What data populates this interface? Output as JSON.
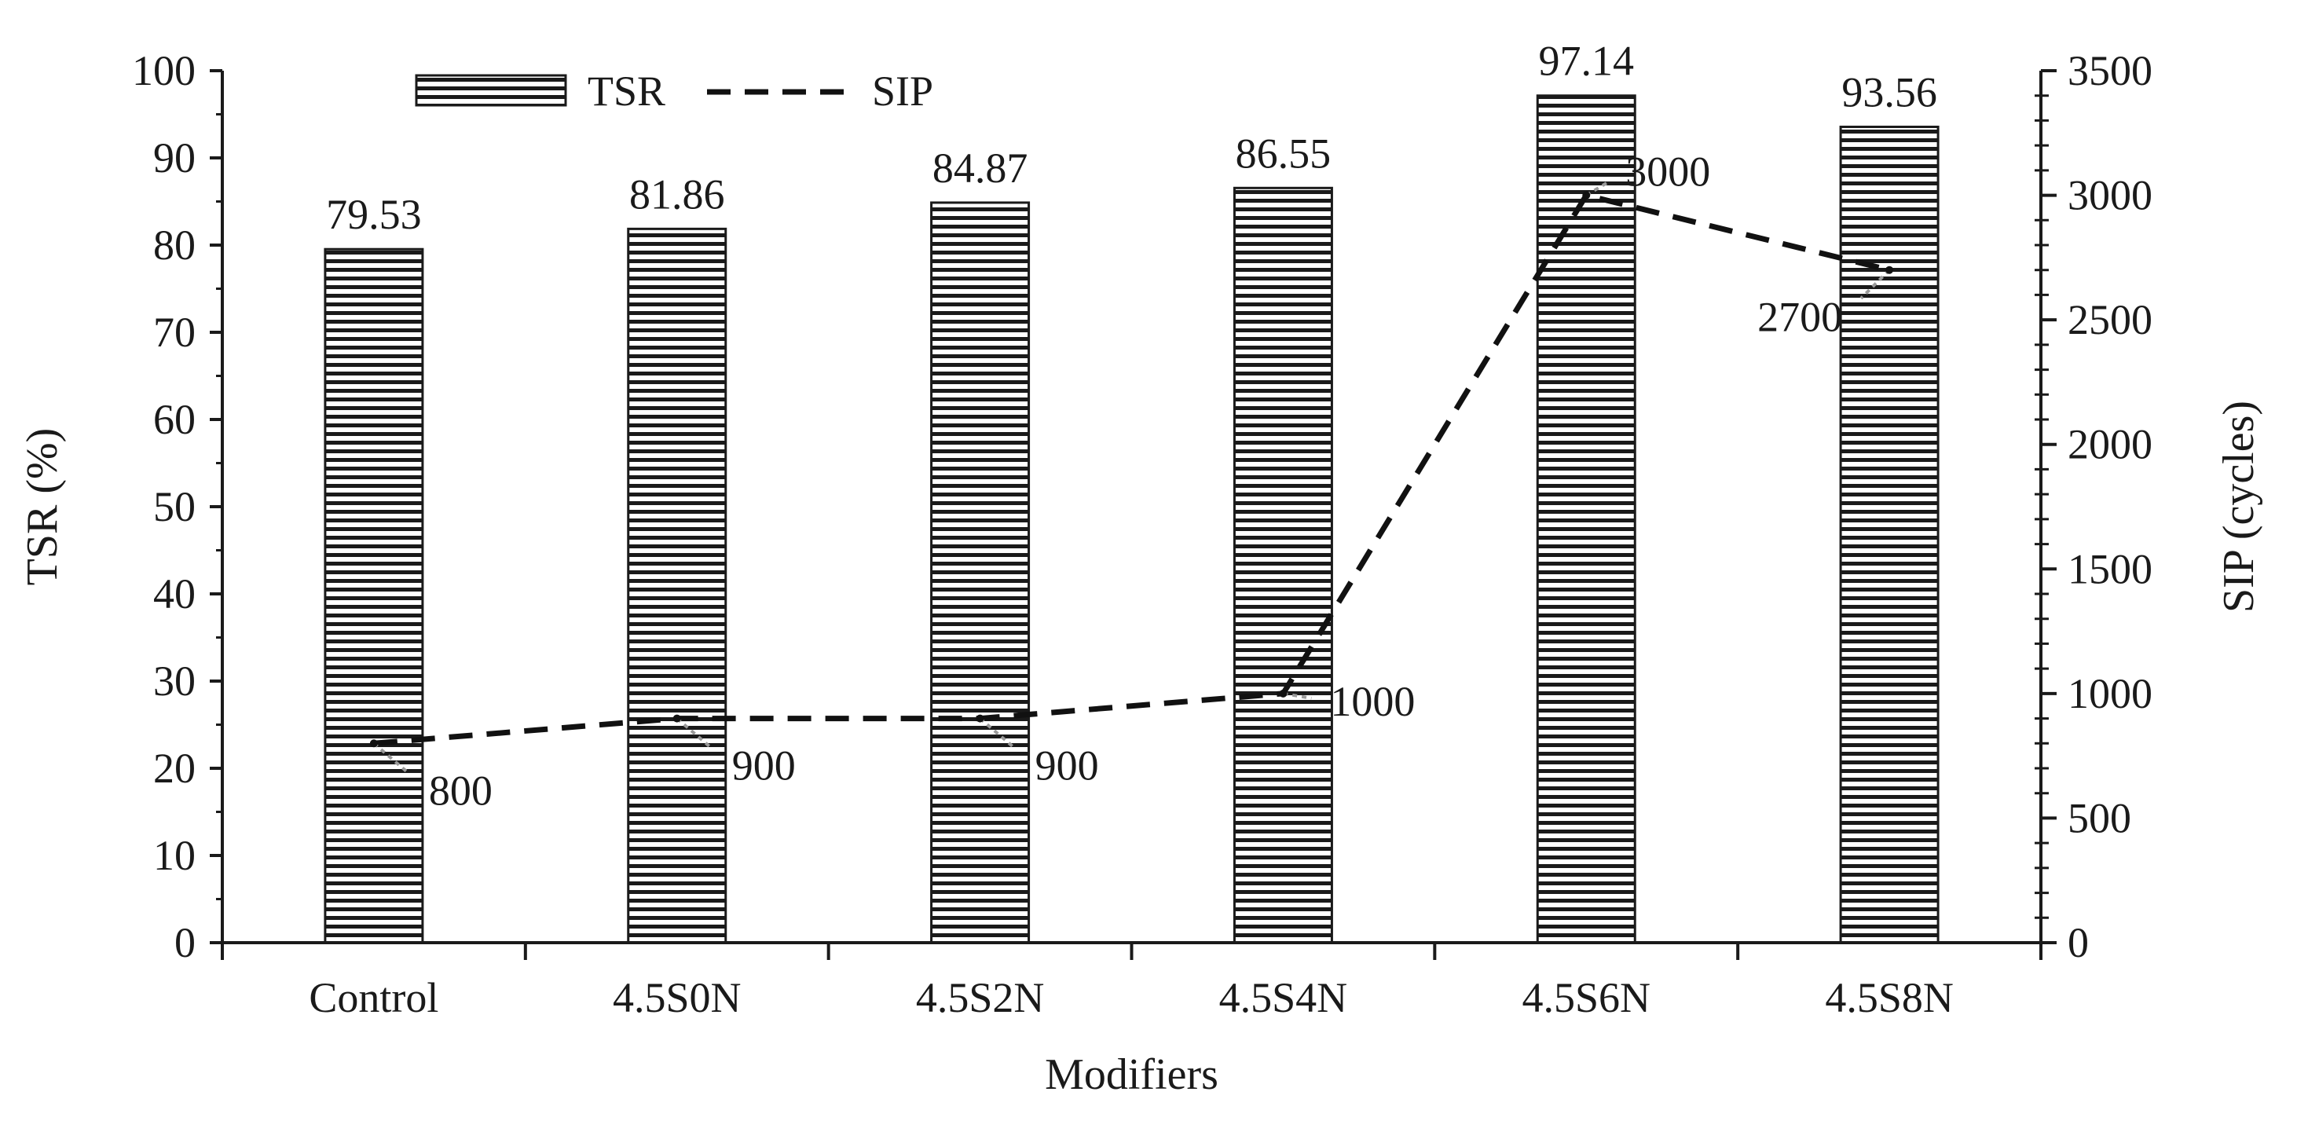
{
  "chart_data": {
    "type": "bar",
    "categories": [
      "Control",
      "4.5S0N",
      "4.5S2N",
      "4.5S4N",
      "4.5S6N",
      "4.5S8N"
    ],
    "series": [
      {
        "name": "TSR",
        "kind": "bar",
        "axis": "left",
        "values": [
          79.53,
          81.86,
          84.87,
          86.55,
          97.14,
          93.56
        ],
        "labels": [
          "79.53",
          "81.86",
          "84.87",
          "86.55",
          "97.14",
          "93.56"
        ]
      },
      {
        "name": "SIP",
        "kind": "line",
        "style": "dashed",
        "axis": "right",
        "values": [
          800,
          900,
          900,
          1000,
          3000,
          2700
        ],
        "labels": [
          "800",
          "900",
          "900",
          "1000",
          "3000",
          "2700"
        ]
      }
    ],
    "xlabel": "Modifiers",
    "ylabel": "TSR (%)",
    "y2label": "SIP (cycles)",
    "ylim": [
      0,
      100
    ],
    "y2lim": [
      0,
      3500
    ],
    "yticks": [
      "0",
      "10",
      "20",
      "30",
      "40",
      "50",
      "60",
      "70",
      "80",
      "90",
      "100"
    ],
    "y2ticks": [
      "0",
      "500",
      "1000",
      "1500",
      "2000",
      "2500",
      "3000",
      "3500"
    ],
    "legend_position": "top-left",
    "grid": false,
    "colors": {
      "bar_fill": "#ffffff",
      "bar_hatch": "#1a1a1a",
      "line": "#111111",
      "leader": "#9a9a9a",
      "axis": "#1a1a1a"
    }
  }
}
